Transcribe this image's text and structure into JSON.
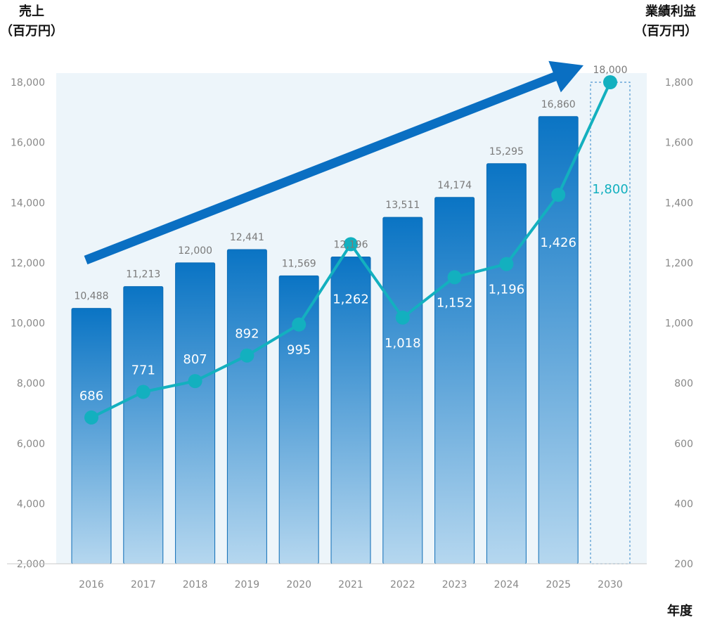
{
  "chart_data": {
    "type": "bar+line",
    "categories": [
      "2016",
      "2017",
      "2018",
      "2019",
      "2020",
      "2021",
      "2022",
      "2023",
      "2024",
      "2025",
      "2030"
    ],
    "y_left": {
      "title_line1": "売上",
      "title_line2": "（百万円）",
      "range": [
        2000,
        18000
      ],
      "ticks": [
        2000,
        4000,
        6000,
        8000,
        10000,
        12000,
        14000,
        16000,
        18000
      ],
      "tick_labels": [
        "2,000",
        "4,000",
        "6,000",
        "8,000",
        "10,000",
        "12,000",
        "14,000",
        "16,000",
        "18,000"
      ]
    },
    "y_right": {
      "title_line1": "業績利益",
      "title_line2": "（百万円）",
      "range": [
        200,
        1800
      ],
      "ticks": [
        200,
        400,
        600,
        800,
        1000,
        1200,
        1400,
        1600,
        1800
      ],
      "tick_labels": [
        "200",
        "400",
        "600",
        "800",
        "1,000",
        "1,200",
        "1,400",
        "1,600",
        "1,800"
      ]
    },
    "x_title": "年度",
    "series": [
      {
        "type": "bar",
        "axis": "left",
        "values": [
          10488,
          11213,
          12000,
          12441,
          11569,
          12196,
          13511,
          14174,
          15295,
          16860,
          18000
        ],
        "labels": [
          "10,488",
          "11,213",
          "12,000",
          "12,441",
          "11,569",
          "12,196",
          "13,511",
          "14,174",
          "15,295",
          "16,860",
          "18,000"
        ],
        "target_index": 10
      },
      {
        "type": "line",
        "axis": "right",
        "values": [
          686,
          771,
          807,
          892,
          995,
          1262,
          1018,
          1152,
          1196,
          1426,
          1800
        ],
        "labels": [
          "686",
          "771",
          "807",
          "892",
          "995",
          "1,262",
          "1,018",
          "1,152",
          "1,196",
          "1,426",
          "1,800"
        ]
      }
    ],
    "colors": {
      "bar_top": "#0a74c4",
      "bar_bottom": "#b5d7ef",
      "bar_border": "#0d6cb5",
      "line": "#13b0bf",
      "arrow": "#0a6fc2",
      "plot_background": "#edf5fa",
      "target_box": "#4f98d0"
    },
    "grid": false
  }
}
